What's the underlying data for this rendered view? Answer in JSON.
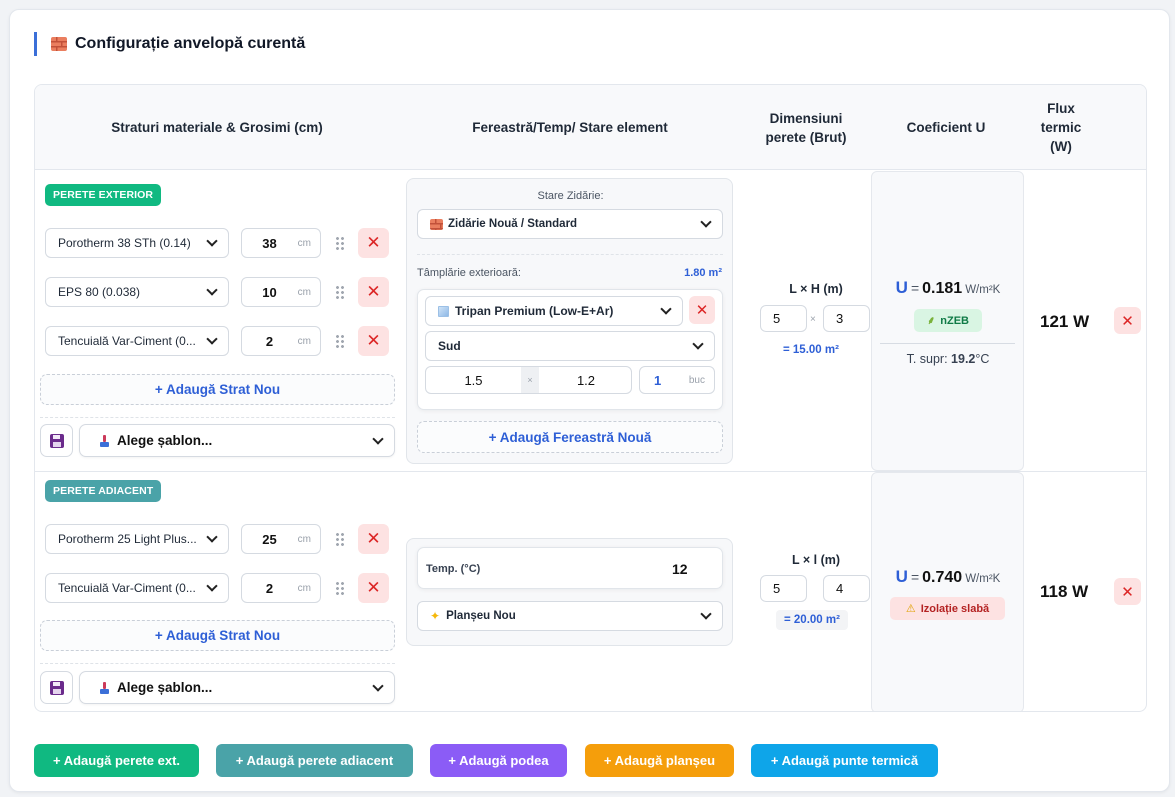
{
  "title": "Configurație anvelopă curentă",
  "headers": {
    "layers": "Straturi materiale & Grosimi (cm)",
    "window": "Fereastră/Temp/ Stare element",
    "dims": "Dimensiuni perete (Brut)",
    "ucoef": "Coeficient U",
    "flux": "Flux termic (W)"
  },
  "row1": {
    "badge": "PERETE EXTERIOR",
    "layers": [
      {
        "material": "Porotherm 38 STh (0.14)",
        "thickness": "38",
        "unit": "cm"
      },
      {
        "material": "EPS 80 (0.038)",
        "thickness": "10",
        "unit": "cm"
      },
      {
        "material": "Tencuială Var-Ciment (0...",
        "thickness": "2",
        "unit": "cm"
      }
    ],
    "add_layer": "+ Adaugă Strat Nou",
    "template": "Alege șablon...",
    "masonry_label": "Stare Zidărie:",
    "masonry_value": "Zidărie Nouă / Standard",
    "joinery_label": "Tâmplărie exterioară:",
    "joinery_area": "1.80 m²",
    "window_type": "Tripan Premium (Low-E+Ar)",
    "orientation": "Sud",
    "win_w": "1.5",
    "win_times": "×",
    "win_h": "1.2",
    "win_count": "1",
    "win_unit": "buc",
    "add_window": "+ Adaugă Fereastră Nouă",
    "dim_label": "L × H (m)",
    "dim_a": "5",
    "dim_times": "×",
    "dim_b": "3",
    "dim_result": "= 15.00 m²",
    "u_symbol": "U",
    "u_eq": "=",
    "u_value": "0.181",
    "u_unit": "W/m²K",
    "u_badge": "nZEB",
    "surface_label": "T. supr:",
    "surface_value": "19.2",
    "surface_unit": "°C",
    "flux": "121 W"
  },
  "row2": {
    "badge": "PERETE ADIACENT",
    "layers": [
      {
        "material": "Porotherm 25 Light Plus...",
        "thickness": "25",
        "unit": "cm"
      },
      {
        "material": "Tencuială Var-Ciment (0...",
        "thickness": "2",
        "unit": "cm"
      }
    ],
    "add_layer": "+ Adaugă Strat Nou",
    "template": "Alege șablon...",
    "temp_label": "Temp. (°C)",
    "temp_value": "12",
    "floor_state": "Planșeu Nou",
    "dim_label": "L × l (m)",
    "dim_a": "5",
    "dim_times": "×",
    "dim_b": "4",
    "dim_result": "= 20.00 m²",
    "u_symbol": "U",
    "u_eq": "=",
    "u_value": "0.740",
    "u_unit": "W/m²K",
    "u_badge": "Izolație slabă",
    "flux": "118 W"
  },
  "actions": {
    "add_ext_wall": "+ Adaugă perete ext.",
    "add_adj_wall": "+ Adaugă perete adiacent",
    "add_floor": "+ Adaugă podea",
    "add_ceiling": "+ Adaugă planșeu",
    "add_bridge": "+ Adaugă punte termică"
  },
  "colors": {
    "accent": "#2e5fd6",
    "ext_wall": "#10b981",
    "adj_wall": "#4aa3a8",
    "floor": "#8b5cf6",
    "ceiling": "#f59e0b",
    "bridge": "#0ea5e9",
    "delete": "#dc2626"
  }
}
